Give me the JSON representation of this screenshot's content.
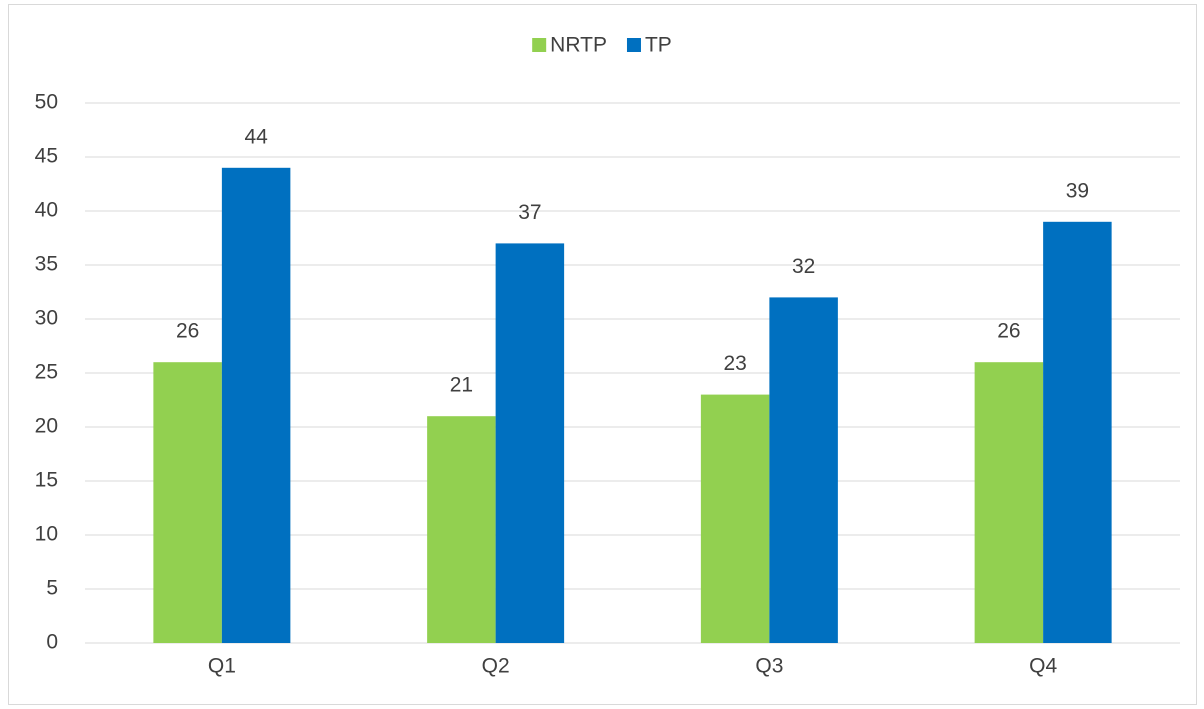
{
  "chart_data": {
    "type": "bar",
    "categories": [
      "Q1",
      "Q2",
      "Q3",
      "Q4"
    ],
    "series": [
      {
        "name": "NRTP",
        "color": "#92d050",
        "values": [
          26,
          21,
          23,
          26
        ]
      },
      {
        "name": "TP",
        "color": "#0070c0",
        "values": [
          44,
          37,
          32,
          39
        ]
      }
    ],
    "ylim": [
      0,
      50
    ],
    "yticks": [
      0,
      5,
      10,
      15,
      20,
      25,
      30,
      35,
      40,
      45,
      50
    ],
    "grid": true,
    "legend": "top"
  }
}
